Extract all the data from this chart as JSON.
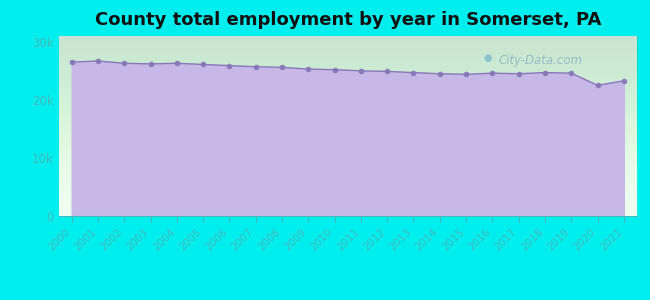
{
  "title": "County total employment by year in Somerset, PA",
  "title_fontsize": 13,
  "title_fontweight": "bold",
  "background_color": "#00EEEE",
  "plot_bg_top": "#f5fff0",
  "plot_bg_bottom": "#d8cff0",
  "fill_color": "#C8B8E8",
  "fill_color_top": "#C8B8E8",
  "line_color": "#8878b8",
  "marker_color": "#8878b8",
  "years": [
    2000,
    2001,
    2002,
    2003,
    2004,
    2005,
    2006,
    2007,
    2008,
    2009,
    2010,
    2011,
    2012,
    2013,
    2014,
    2015,
    2016,
    2017,
    2018,
    2019,
    2020,
    2021
  ],
  "values": [
    26500,
    26700,
    26300,
    26200,
    26300,
    26100,
    25900,
    25700,
    25600,
    25300,
    25200,
    25000,
    24900,
    24700,
    24500,
    24400,
    24600,
    24500,
    24700,
    24600,
    22500,
    23300
  ],
  "ylim": [
    0,
    31000
  ],
  "yticks": [
    0,
    10000,
    20000,
    30000
  ],
  "ytick_labels": [
    "0",
    "10k",
    "20k",
    "30k"
  ],
  "tick_color": "#44bbbb",
  "label_color": "#44bbbb",
  "watermark": "City-Data.com"
}
